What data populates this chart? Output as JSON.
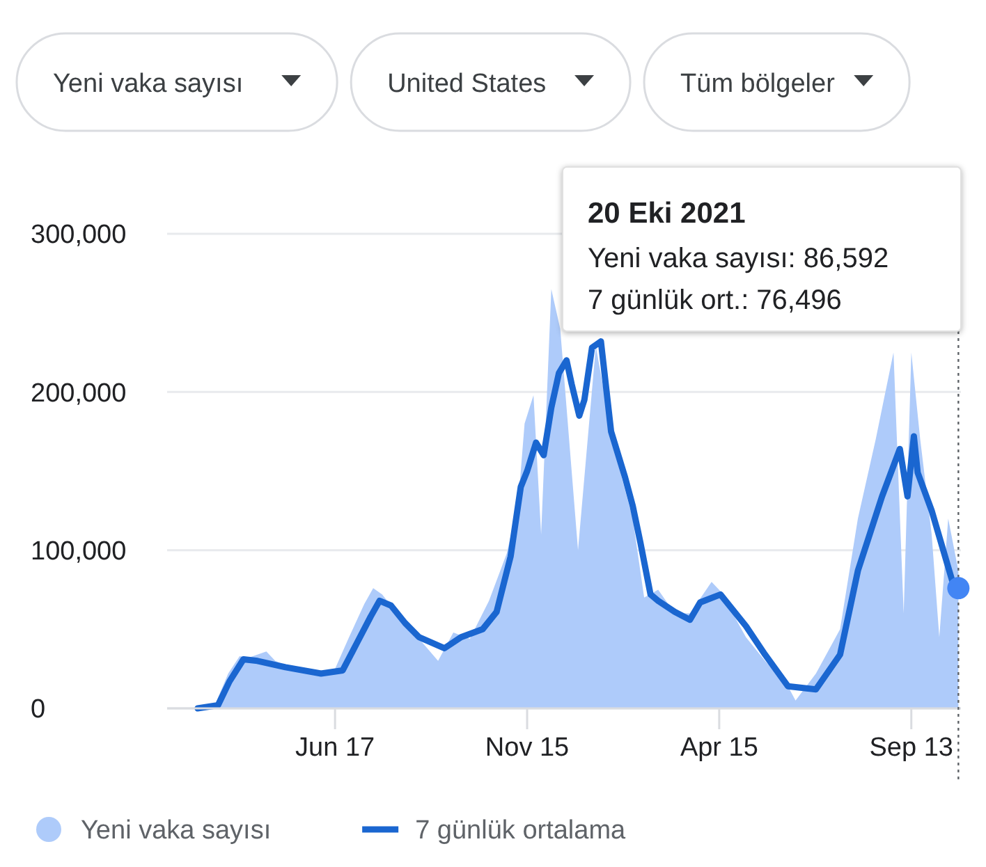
{
  "chart_data": {
    "type": "line",
    "xlim": [
      "2020-02-06",
      "2021-10-22"
    ],
    "xticks": [
      {
        "value": "2020-06-17",
        "label": "Jun 17"
      },
      {
        "value": "2020-11-15",
        "label": "Nov 15"
      },
      {
        "value": "2021-04-15",
        "label": "Apr 15"
      },
      {
        "value": "2021-09-13",
        "label": "Sep 13"
      }
    ],
    "ylim": [
      0,
      300000
    ],
    "yticks": [
      {
        "value": 0,
        "label": "0"
      },
      {
        "value": 100000,
        "label": "100,000"
      },
      {
        "value": 200000,
        "label": "200,000"
      },
      {
        "value": 300000,
        "label": "300,000"
      }
    ],
    "grid": "y",
    "legend": "bottom left",
    "ref_lines": [
      {
        "axis": "x",
        "value": "2021-10-20",
        "line_style": "dotted",
        "color": "#5f6368"
      }
    ],
    "annotations": [
      "Yeni vaka sayısı",
      "United States",
      "Tüm bölgeler",
      "20 Eki 2021",
      "Yeni vaka sayısı: 86,592",
      "7 günlük ort.: 76,496"
    ],
    "series": [
      {
        "name": "Yeni vaka sayısı",
        "type": "area",
        "color": "#aecbfa",
        "x": [
          "2020-03-01",
          "2020-03-15",
          "2020-03-25",
          "2020-04-03",
          "2020-04-10",
          "2020-04-24",
          "2020-05-01",
          "2020-05-15",
          "2020-06-01",
          "2020-06-17",
          "2020-06-28",
          "2020-07-10",
          "2020-07-17",
          "2020-07-24",
          "2020-08-07",
          "2020-08-21",
          "2020-09-06",
          "2020-09-18",
          "2020-10-01",
          "2020-10-16",
          "2020-10-30",
          "2020-11-08",
          "2020-11-13",
          "2020-11-20",
          "2020-11-26",
          "2020-12-04",
          "2020-12-11",
          "2020-12-25",
          "2021-01-08",
          "2021-01-20",
          "2021-01-27",
          "2021-02-06",
          "2021-02-15",
          "2021-02-26",
          "2021-03-11",
          "2021-03-23",
          "2021-04-09",
          "2021-04-16",
          "2021-05-06",
          "2021-05-21",
          "2021-06-08",
          "2021-06-14",
          "2021-06-30",
          "2021-07-19",
          "2021-08-02",
          "2021-08-16",
          "2021-08-30",
          "2021-09-07",
          "2021-09-13",
          "2021-09-20",
          "2021-09-29",
          "2021-10-05",
          "2021-10-12",
          "2021-10-20"
        ],
        "values": [
          0,
          3000,
          22000,
          33000,
          32000,
          36000,
          30000,
          25000,
          21000,
          25000,
          45000,
          66000,
          76000,
          72000,
          58000,
          45000,
          30000,
          48000,
          44000,
          68000,
          98000,
          130000,
          180000,
          198000,
          110000,
          265000,
          240000,
          100000,
          229000,
          175000,
          150000,
          120000,
          70000,
          75000,
          60000,
          60000,
          80000,
          74000,
          45000,
          30000,
          14000,
          5000,
          22000,
          50000,
          120000,
          170000,
          225000,
          60000,
          225000,
          170000,
          110000,
          45000,
          120000,
          87000
        ]
      },
      {
        "name": "7 günlük ortalama",
        "color": "#1a66d0",
        "x": [
          "2020-03-01",
          "2020-03-17",
          "2020-03-26",
          "2020-04-06",
          "2020-04-17",
          "2020-05-09",
          "2020-06-06",
          "2020-06-23",
          "2020-07-04",
          "2020-07-15",
          "2020-07-22",
          "2020-07-31",
          "2020-08-11",
          "2020-08-22",
          "2020-09-11",
          "2020-09-24",
          "2020-10-11",
          "2020-10-22",
          "2020-11-02",
          "2020-11-10",
          "2020-11-15",
          "2020-11-22",
          "2020-11-28",
          "2020-12-04",
          "2020-12-10",
          "2020-12-16",
          "2020-12-20",
          "2020-12-26",
          "2020-12-30",
          "2021-01-05",
          "2021-01-12",
          "2021-01-20",
          "2021-01-31",
          "2021-02-06",
          "2021-02-12",
          "2021-02-20",
          "2021-02-26",
          "2021-03-11",
          "2021-03-23",
          "2021-03-31",
          "2021-04-16",
          "2021-05-06",
          "2021-05-21",
          "2021-06-08",
          "2021-06-30",
          "2021-07-19",
          "2021-08-02",
          "2021-08-21",
          "2021-09-04",
          "2021-09-10",
          "2021-09-15",
          "2021-09-18",
          "2021-09-29",
          "2021-10-15",
          "2021-10-20"
        ],
        "values": [
          0,
          2000,
          17000,
          31000,
          30000,
          26000,
          22000,
          24000,
          41000,
          58000,
          68000,
          65000,
          54000,
          45000,
          38000,
          45000,
          50000,
          61000,
          96000,
          140000,
          150000,
          168000,
          160000,
          190000,
          212000,
          220000,
          205000,
          185000,
          195000,
          228000,
          232000,
          175000,
          146000,
          128000,
          105000,
          72000,
          68000,
          61000,
          56000,
          67000,
          72000,
          52000,
          34000,
          14000,
          12000,
          34000,
          87000,
          134000,
          164000,
          134000,
          172000,
          149000,
          125000,
          81000,
          76000
        ]
      }
    ]
  }
}
